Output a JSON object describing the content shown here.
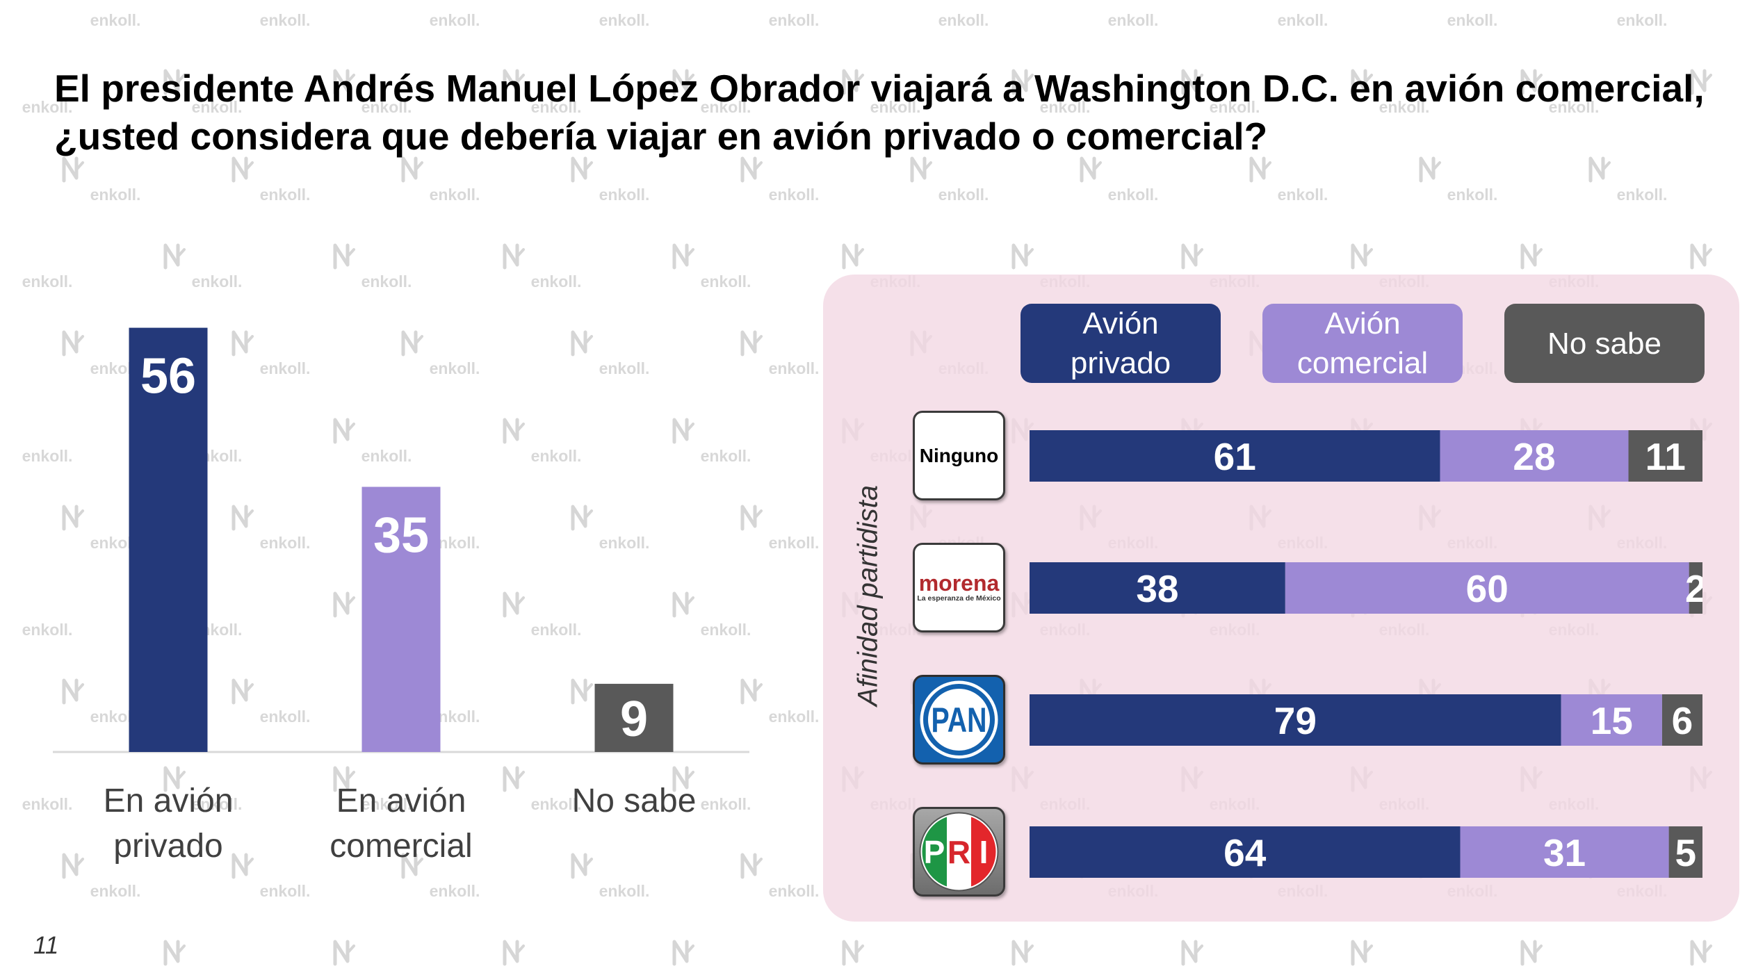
{
  "slide": {
    "title": "El presidente Andrés Manuel López Obrador viajará a Washington D.C. en avión comercial, ¿usted considera que debería viajar en avión privado o comercial?",
    "page_number": "11",
    "watermark": "enkoll."
  },
  "chart_data": [
    {
      "type": "bar",
      "categories": [
        "En avión privado",
        "En avión comercial",
        "No sabe"
      ],
      "values": [
        56,
        35,
        9
      ],
      "colors": [
        "#24397A",
        "#9D89D5",
        "#595959"
      ],
      "grid": false,
      "legend": "none"
    },
    {
      "type": "bar",
      "orientation": "horizontal",
      "stacked": true,
      "ylabel": "Afinidad partidista",
      "categories": [
        "Ninguno",
        "morena",
        "PAN",
        "PRI"
      ],
      "series": [
        {
          "name": "Avión privado",
          "values": [
            61,
            38,
            79,
            64
          ],
          "color": "#24397A"
        },
        {
          "name": "Avión comercial",
          "values": [
            28,
            60,
            15,
            31
          ],
          "color": "#9D89D5"
        },
        {
          "name": "No sabe",
          "values": [
            11,
            2,
            6,
            5
          ],
          "color": "#595959"
        }
      ],
      "xlim": [
        0,
        100
      ],
      "grid": false,
      "legend": "top"
    }
  ],
  "logos": {
    "morena_tagline": "La esperanza de México"
  },
  "colors": {
    "panel": "#F5E1EA",
    "text": "#404040"
  }
}
